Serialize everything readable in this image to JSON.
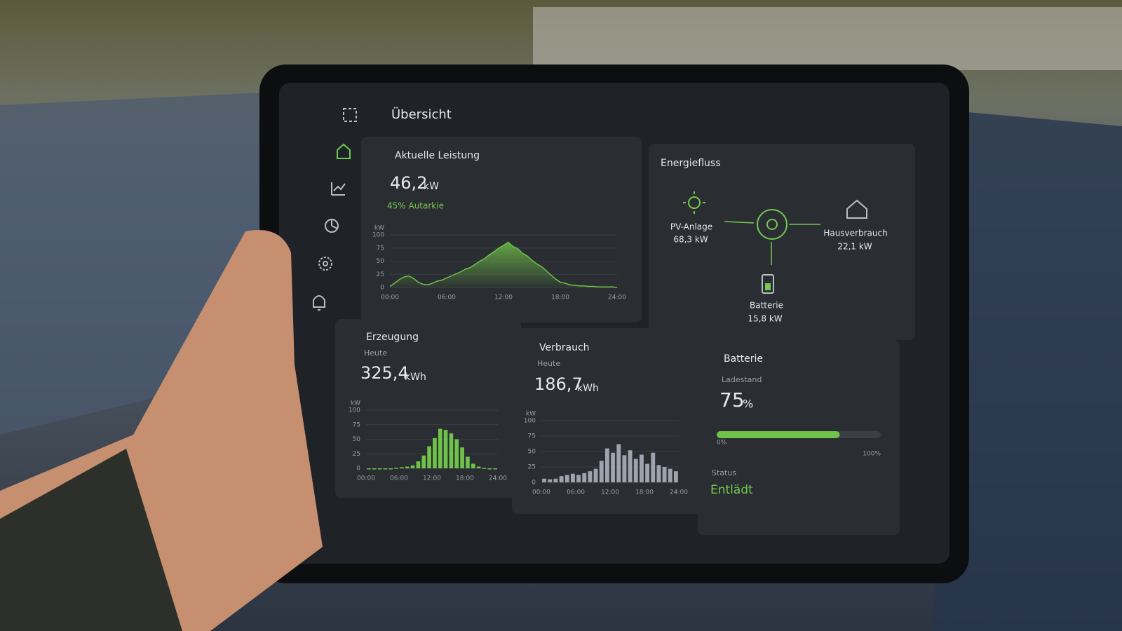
{
  "header": {
    "title": "Übersicht"
  },
  "leistung": {
    "title": "Aktuelle Leistung",
    "value": "46,2",
    "unit": "kW",
    "autarkie": "45% Autarkie",
    "chart": {
      "type": "area",
      "color": "#6fc24a",
      "y_unit": "kW",
      "x": [
        0,
        0.5,
        1,
        1.5,
        2,
        2.5,
        3,
        3.5,
        4,
        4.5,
        5,
        5.5,
        6,
        6.5,
        7,
        7.5,
        8,
        8.5,
        9,
        9.5,
        10,
        10.5,
        11,
        11.5,
        12,
        12.5,
        13,
        13.5,
        14,
        14.5,
        15,
        15.5,
        16,
        16.5,
        17,
        17.5,
        18,
        18.5,
        19,
        19.5,
        20,
        20.5,
        21,
        21.5,
        22,
        22.5,
        23,
        23.5,
        24
      ],
      "values": [
        2,
        8,
        15,
        20,
        22,
        17,
        10,
        6,
        5,
        8,
        12,
        14,
        18,
        22,
        26,
        30,
        35,
        38,
        44,
        50,
        55,
        62,
        68,
        75,
        80,
        86,
        78,
        74,
        65,
        60,
        52,
        45,
        40,
        32,
        24,
        16,
        10,
        8,
        5,
        4,
        3,
        3,
        2,
        2,
        1,
        1,
        1,
        1,
        0
      ],
      "xlim": [
        0,
        24
      ],
      "xticks": [
        {
          "value": 0,
          "label": "00:00"
        },
        {
          "value": 6,
          "label": "06:00"
        },
        {
          "value": 12,
          "label": "12:00"
        },
        {
          "value": 18,
          "label": "18:00"
        },
        {
          "value": 24,
          "label": "24:00"
        }
      ],
      "ylim": [
        0,
        100
      ],
      "yticks": [
        0,
        25,
        50,
        75,
        100
      ],
      "grid": true
    }
  },
  "energiefluss": {
    "title": "Energiefluss",
    "pv": {
      "label": "PV-Anlage",
      "value": "68,3 kW"
    },
    "haus": {
      "label": "Hausverbrauch",
      "value": "22,1 kW"
    },
    "batterie": {
      "label": "Batterie",
      "value": "15,8 kW"
    }
  },
  "erzeugung": {
    "title": "Erzeugung",
    "period": "Heute",
    "value": "325,4",
    "unit": "kWh",
    "chart": {
      "type": "bar",
      "color": "#6fc24a",
      "y_unit": "kW",
      "x": [
        0.5,
        1.5,
        2.5,
        3.5,
        4.5,
        5.5,
        6.5,
        7.5,
        8.5,
        9.5,
        10.5,
        11.5,
        12.5,
        13.5,
        14.5,
        15.5,
        16.5,
        17.5,
        18.5,
        19.5,
        20.5,
        21.5,
        22.5,
        23.5
      ],
      "values": [
        0,
        0,
        0,
        0,
        0,
        1,
        2,
        3,
        5,
        12,
        22,
        38,
        52,
        68,
        66,
        60,
        50,
        36,
        20,
        8,
        3,
        1,
        0,
        0
      ],
      "xlim": [
        0,
        24
      ],
      "xticks": [
        {
          "value": 0,
          "label": "00:00"
        },
        {
          "value": 6,
          "label": "06:00"
        },
        {
          "value": 12,
          "label": "12:00"
        },
        {
          "value": 18,
          "label": "18:00"
        },
        {
          "value": 24,
          "label": "24:00"
        }
      ],
      "ylim": [
        0,
        100
      ],
      "yticks": [
        0,
        25,
        50,
        75,
        100
      ],
      "grid": true
    }
  },
  "verbrauch": {
    "title": "Verbrauch",
    "period": "Heute",
    "value": "186,7",
    "unit": "kWh",
    "chart": {
      "type": "bar",
      "color": "#9ea4ad",
      "y_unit": "kW",
      "x": [
        0.5,
        1.5,
        2.5,
        3.5,
        4.5,
        5.5,
        6.5,
        7.5,
        8.5,
        9.5,
        10.5,
        11.5,
        12.5,
        13.5,
        14.5,
        15.5,
        16.5,
        17.5,
        18.5,
        19.5,
        20.5,
        21.5,
        22.5,
        23.5
      ],
      "values": [
        6,
        5,
        6,
        10,
        12,
        14,
        12,
        15,
        18,
        22,
        35,
        55,
        48,
        62,
        44,
        52,
        38,
        45,
        30,
        48,
        28,
        25,
        22,
        18
      ],
      "xlim": [
        0,
        24
      ],
      "xticks": [
        {
          "value": 0,
          "label": "00:00"
        },
        {
          "value": 6,
          "label": "06:00"
        },
        {
          "value": 12,
          "label": "12:00"
        },
        {
          "value": 18,
          "label": "18:00"
        },
        {
          "value": 24,
          "label": "24:00"
        }
      ],
      "ylim": [
        0,
        100
      ],
      "yticks": [
        0,
        25,
        50,
        75,
        100
      ],
      "grid": true
    }
  },
  "batterie": {
    "title": "Batterie",
    "label": "Ladestand",
    "charge": 75,
    "charge_unit": "%",
    "color": "#6fc24a",
    "scale": [
      {
        "value": 0,
        "label": "0%"
      },
      {
        "value": 100,
        "label": "100%"
      }
    ],
    "status_label": "Status",
    "status": "Entlädt"
  }
}
